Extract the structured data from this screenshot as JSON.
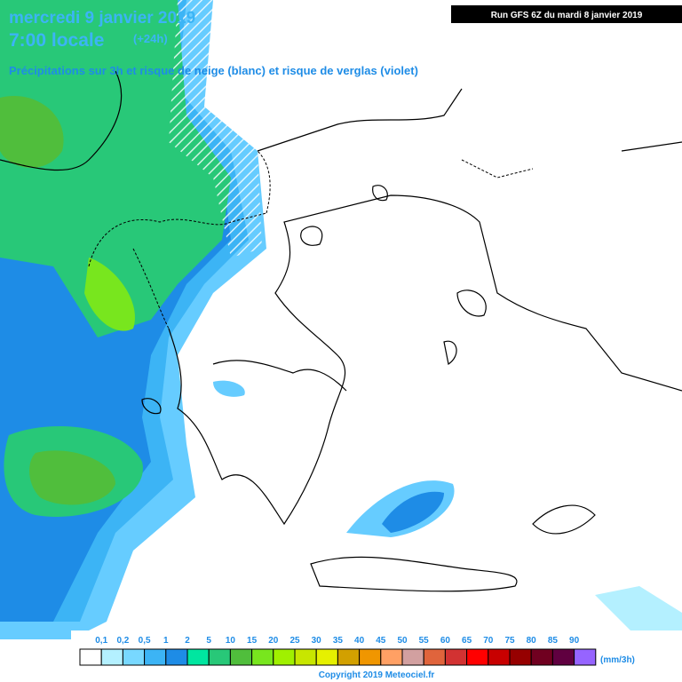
{
  "header": {
    "title": "mercredi 9 janvier 2019",
    "time": "7:00 locale",
    "lead": "(+24h)",
    "description": "Précipitations sur 3h et risque de neige (blanc) et risque de verglas (violet)",
    "run": "Run GFS 6Z du mardi 8 janvier 2019"
  },
  "legend": {
    "labels": [
      "0,1",
      "0,2",
      "0,5",
      "1",
      "2",
      "5",
      "10",
      "15",
      "20",
      "25",
      "30",
      "35",
      "40",
      "45",
      "50",
      "55",
      "60",
      "65",
      "70",
      "75",
      "80",
      "85",
      "90"
    ],
    "colors": [
      "#ffffff",
      "#b4f0ff",
      "#78d8ff",
      "#3cb4f5",
      "#1e8ce6",
      "#00e6a0",
      "#28c878",
      "#50be3c",
      "#78e61e",
      "#a0f000",
      "#c8e600",
      "#e6f000",
      "#d2a000",
      "#f09600",
      "#ffa064",
      "#d2a0a0",
      "#e0643c",
      "#d23232",
      "#ff0000",
      "#c80000",
      "#960000",
      "#700020",
      "#600040",
      "#9664ff"
    ],
    "unit": "(mm/3h)"
  },
  "footer": {
    "copyright": "Copyright 2019 Meteociel.fr"
  }
}
